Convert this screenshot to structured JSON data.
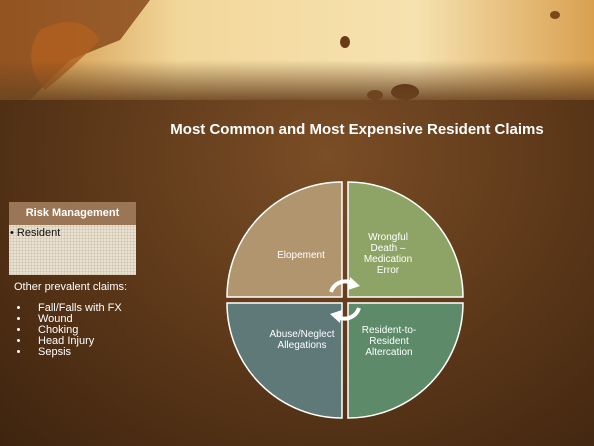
{
  "title": "Most Common and Most Expensive Resident Claims",
  "sidebar": {
    "heading": "Risk Management",
    "items": [
      "• Resident"
    ]
  },
  "claims": {
    "heading": "Other prevalent claims:",
    "items": [
      "Fall/Falls with FX",
      "Wound",
      "Choking",
      "Head Injury",
      "Sepsis"
    ]
  },
  "quadrants": [
    "Elopement",
    "Wrongful Death – Medication Error",
    "Abuse/Neglect Allegations",
    "Resident-to-Resident Altercation"
  ]
}
